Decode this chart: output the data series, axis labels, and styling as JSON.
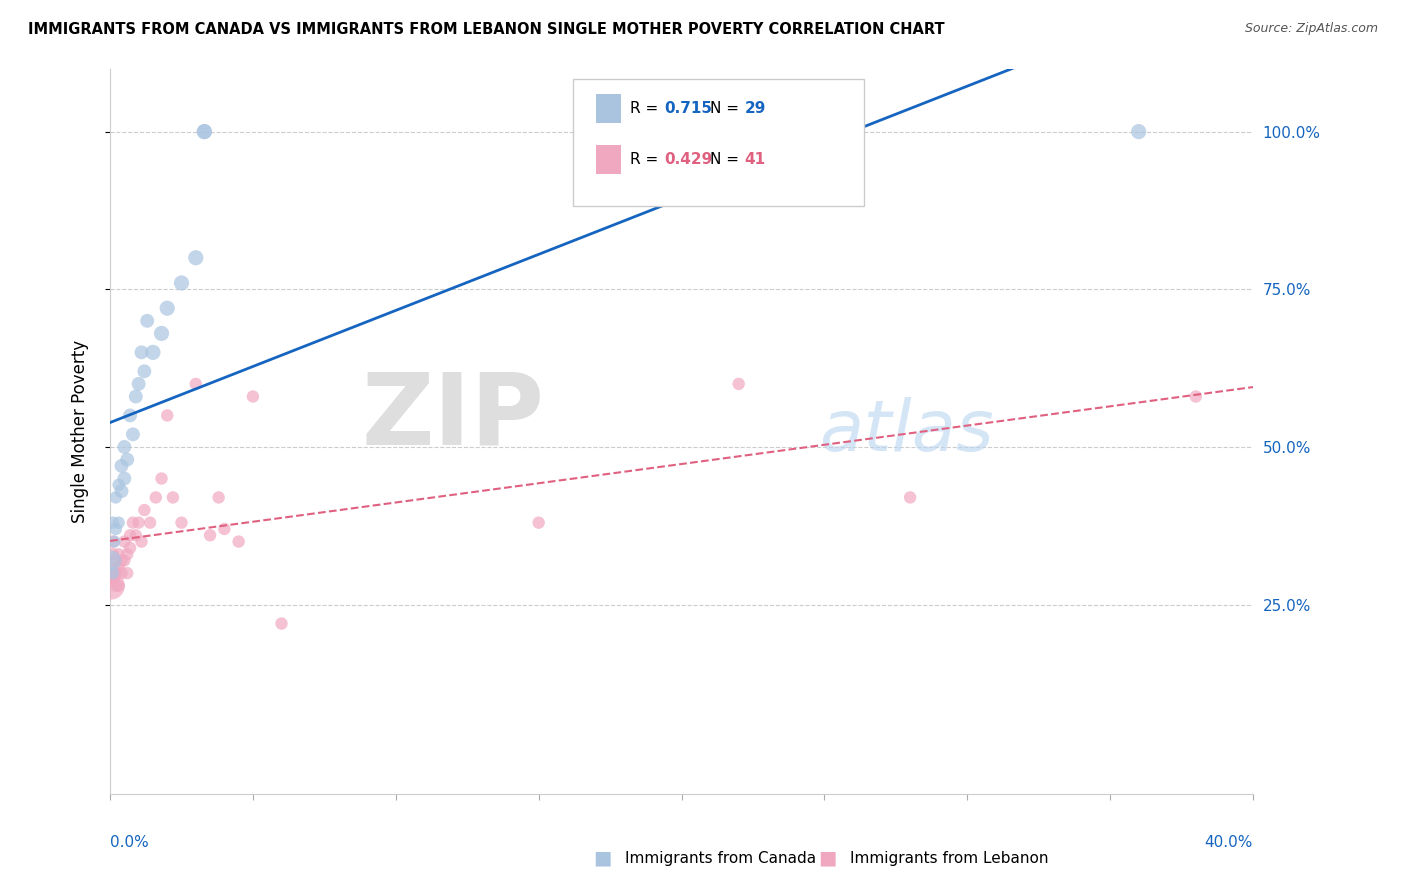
{
  "title": "IMMIGRANTS FROM CANADA VS IMMIGRANTS FROM LEBANON SINGLE MOTHER POVERTY CORRELATION CHART",
  "source": "Source: ZipAtlas.com",
  "ylabel": "Single Mother Poverty",
  "xlim": [
    0.0,
    0.4
  ],
  "ylim": [
    -0.05,
    1.1
  ],
  "canada_R": 0.715,
  "canada_N": 29,
  "lebanon_R": 0.429,
  "lebanon_N": 41,
  "watermark_zip": "ZIP",
  "watermark_atlas": "atlas",
  "canada_color": "#aac4e0",
  "lebanon_color": "#f0a8c0",
  "canada_line_color": "#1565c0",
  "lebanon_line_color": "#e06080",
  "canada_points_x": [
    0.0005,
    0.001,
    0.001,
    0.0015,
    0.002,
    0.002,
    0.003,
    0.003,
    0.004,
    0.004,
    0.005,
    0.005,
    0.006,
    0.007,
    0.008,
    0.009,
    0.01,
    0.011,
    0.012,
    0.013,
    0.015,
    0.018,
    0.02,
    0.025,
    0.03,
    0.033,
    0.033,
    0.2,
    0.36
  ],
  "canada_points_y": [
    0.32,
    0.3,
    0.38,
    0.35,
    0.37,
    0.42,
    0.38,
    0.44,
    0.43,
    0.47,
    0.45,
    0.5,
    0.48,
    0.55,
    0.52,
    0.58,
    0.6,
    0.65,
    0.62,
    0.7,
    0.65,
    0.68,
    0.72,
    0.76,
    0.8,
    1.0,
    1.0,
    1.0,
    1.0
  ],
  "canada_sizes": [
    200,
    80,
    80,
    80,
    80,
    80,
    80,
    80,
    100,
    100,
    100,
    100,
    100,
    100,
    100,
    100,
    100,
    100,
    100,
    100,
    120,
    120,
    120,
    120,
    120,
    120,
    120,
    120,
    120
  ],
  "lebanon_points_x": [
    0.0003,
    0.0005,
    0.001,
    0.001,
    0.001,
    0.002,
    0.002,
    0.002,
    0.003,
    0.003,
    0.003,
    0.004,
    0.004,
    0.005,
    0.005,
    0.006,
    0.006,
    0.007,
    0.007,
    0.008,
    0.009,
    0.01,
    0.011,
    0.012,
    0.014,
    0.016,
    0.018,
    0.02,
    0.022,
    0.025,
    0.03,
    0.035,
    0.038,
    0.04,
    0.045,
    0.05,
    0.06,
    0.15,
    0.22,
    0.28,
    0.38
  ],
  "lebanon_points_y": [
    0.28,
    0.3,
    0.29,
    0.33,
    0.35,
    0.3,
    0.32,
    0.28,
    0.31,
    0.33,
    0.28,
    0.32,
    0.3,
    0.35,
    0.32,
    0.33,
    0.3,
    0.36,
    0.34,
    0.38,
    0.36,
    0.38,
    0.35,
    0.4,
    0.38,
    0.42,
    0.45,
    0.55,
    0.42,
    0.38,
    0.6,
    0.36,
    0.42,
    0.37,
    0.35,
    0.58,
    0.22,
    0.38,
    0.6,
    0.42,
    0.58
  ],
  "lebanon_sizes": [
    400,
    200,
    80,
    80,
    80,
    80,
    80,
    80,
    80,
    80,
    80,
    80,
    80,
    80,
    80,
    80,
    80,
    80,
    80,
    80,
    80,
    80,
    80,
    80,
    80,
    80,
    80,
    80,
    80,
    80,
    80,
    80,
    80,
    80,
    80,
    80,
    80,
    80,
    80,
    80,
    80
  ],
  "ytick_positions": [
    0.25,
    0.5,
    0.75,
    1.0
  ],
  "ytick_labels": [
    "25.0%",
    "50.0%",
    "75.0%",
    "100.0%"
  ],
  "xtick_positions": [
    0.0,
    0.05,
    0.1,
    0.15,
    0.2,
    0.25,
    0.3,
    0.35,
    0.4
  ]
}
